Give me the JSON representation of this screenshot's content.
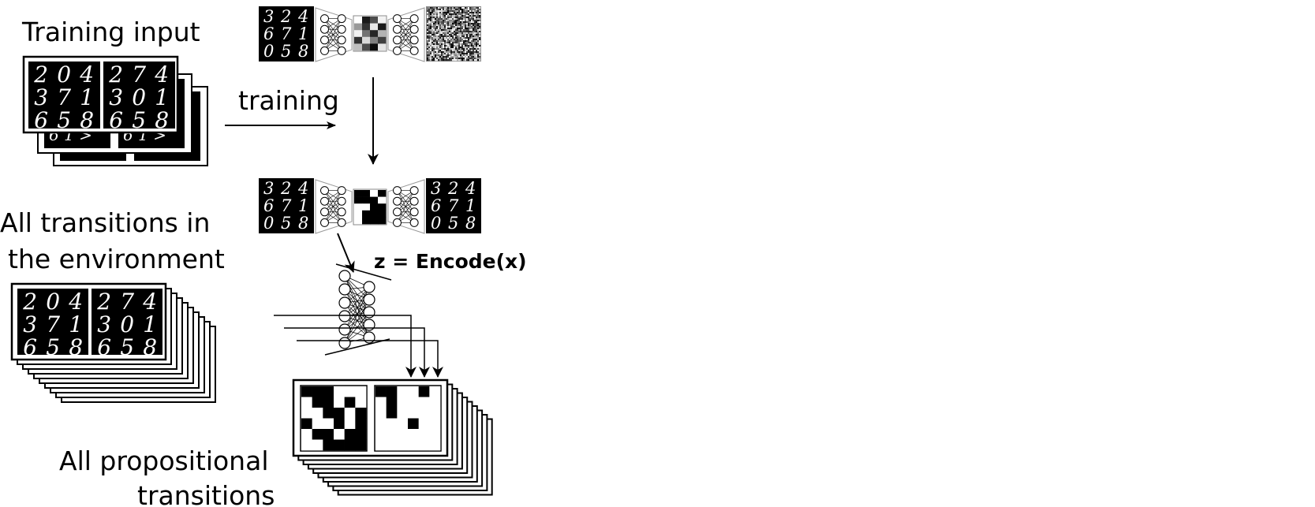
{
  "labels": {
    "training_input": "Training input",
    "training": "training",
    "all_transitions_line1": "All transitions in",
    "all_transitions_line2": "the environment",
    "encode": "z = Encode(x)",
    "all_propositional_line1": "All propositional",
    "all_propositional_line2": "transitions"
  },
  "digit_grids": {
    "autoencoder": [
      [
        "3",
        "2",
        "4"
      ],
      [
        "6",
        "7",
        "1"
      ],
      [
        "0",
        "5",
        "8"
      ]
    ],
    "pre_transition": [
      [
        "2",
        "0",
        "4"
      ],
      [
        "3",
        "7",
        "1"
      ],
      [
        "6",
        "5",
        "8"
      ]
    ],
    "post_transition": [
      [
        "2",
        "7",
        "4"
      ],
      [
        "3",
        "0",
        "1"
      ],
      [
        "6",
        "5",
        "8"
      ]
    ],
    "back_row_hint": [
      [
        "6",
        "1",
        ">"
      ]
    ]
  },
  "latent": {
    "gray_levels_untrained": [
      [
        1.0,
        0.1,
        0.3,
        0.95
      ],
      [
        0.6,
        0.2,
        0.9,
        0.1
      ],
      [
        0.95,
        0.45,
        0.15,
        0.7
      ],
      [
        0.2,
        0.85,
        0.5,
        0.25
      ],
      [
        0.75,
        0.3,
        0.05,
        0.9
      ]
    ],
    "binary_trained": [
      [
        1,
        1,
        0,
        1
      ],
      [
        1,
        1,
        1,
        0
      ],
      [
        0,
        0,
        1,
        1
      ],
      [
        0,
        1,
        1,
        1
      ],
      [
        0,
        1,
        1,
        1
      ]
    ],
    "prop_pre": [
      [
        1,
        1,
        1,
        0,
        0,
        0
      ],
      [
        0,
        1,
        1,
        0,
        1,
        0
      ],
      [
        0,
        0,
        1,
        1,
        0,
        1
      ],
      [
        1,
        0,
        0,
        1,
        0,
        1
      ],
      [
        0,
        1,
        1,
        0,
        1,
        1
      ],
      [
        0,
        0,
        1,
        1,
        1,
        1
      ]
    ],
    "prop_post": [
      [
        1,
        1,
        0,
        0,
        1,
        0
      ],
      [
        0,
        1,
        0,
        0,
        0,
        0
      ],
      [
        0,
        1,
        0,
        0,
        0,
        0
      ],
      [
        0,
        0,
        0,
        1,
        0,
        0
      ],
      [
        0,
        0,
        0,
        0,
        0,
        0
      ],
      [
        0,
        0,
        0,
        0,
        0,
        0
      ]
    ]
  }
}
